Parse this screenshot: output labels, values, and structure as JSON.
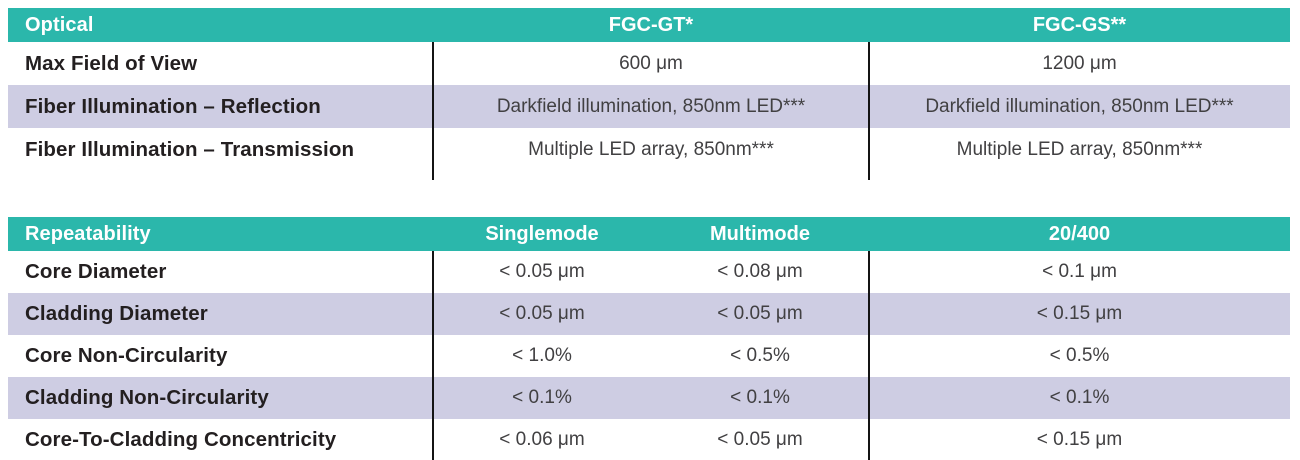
{
  "colors": {
    "teal": "#2bb7ab",
    "lavender": "#cecde3",
    "header_text": "#ffffff",
    "label_text": "#231f20",
    "value_text": "#414042",
    "divider": "#141414"
  },
  "optical_table": {
    "header": {
      "col0": "Optical",
      "col1": "FGC-GT*",
      "col2": "FGC-GS**"
    },
    "rows": [
      {
        "label": "Max Field of View",
        "col1": "600 μm",
        "col2": "1200 μm"
      },
      {
        "label": "Fiber Illumination – Reflection",
        "col1": "Darkfield illumination, 850nm LED***",
        "col2": "Darkfield illumination, 850nm LED***"
      },
      {
        "label": "Fiber Illumination – Transmission",
        "col1": "Multiple LED array, 850nm***",
        "col2": "Multiple LED array, 850nm***"
      }
    ]
  },
  "repeatability_table": {
    "header": {
      "col0": "Repeatability",
      "col1": "Singlemode",
      "col2": "Multimode",
      "col3": "20/400"
    },
    "rows": [
      {
        "label": "Core Diameter",
        "col1": "< 0.05 μm",
        "col2": "< 0.08 μm",
        "col3": "< 0.1 μm"
      },
      {
        "label": "Cladding Diameter",
        "col1": "< 0.05 μm",
        "col2": "< 0.05 μm",
        "col3": "< 0.15 μm"
      },
      {
        "label": "Core Non-Circularity",
        "col1": "< 1.0%",
        "col2": "< 0.5%",
        "col3": "< 0.5%"
      },
      {
        "label": "Cladding Non-Circularity",
        "col1": "< 0.1%",
        "col2": "< 0.1%",
        "col3": "< 0.1%"
      },
      {
        "label": "Core-To-Cladding Concentricity",
        "col1": "< 0.06 μm",
        "col2": "< 0.05 μm",
        "col3": "< 0.15 μm"
      }
    ]
  }
}
